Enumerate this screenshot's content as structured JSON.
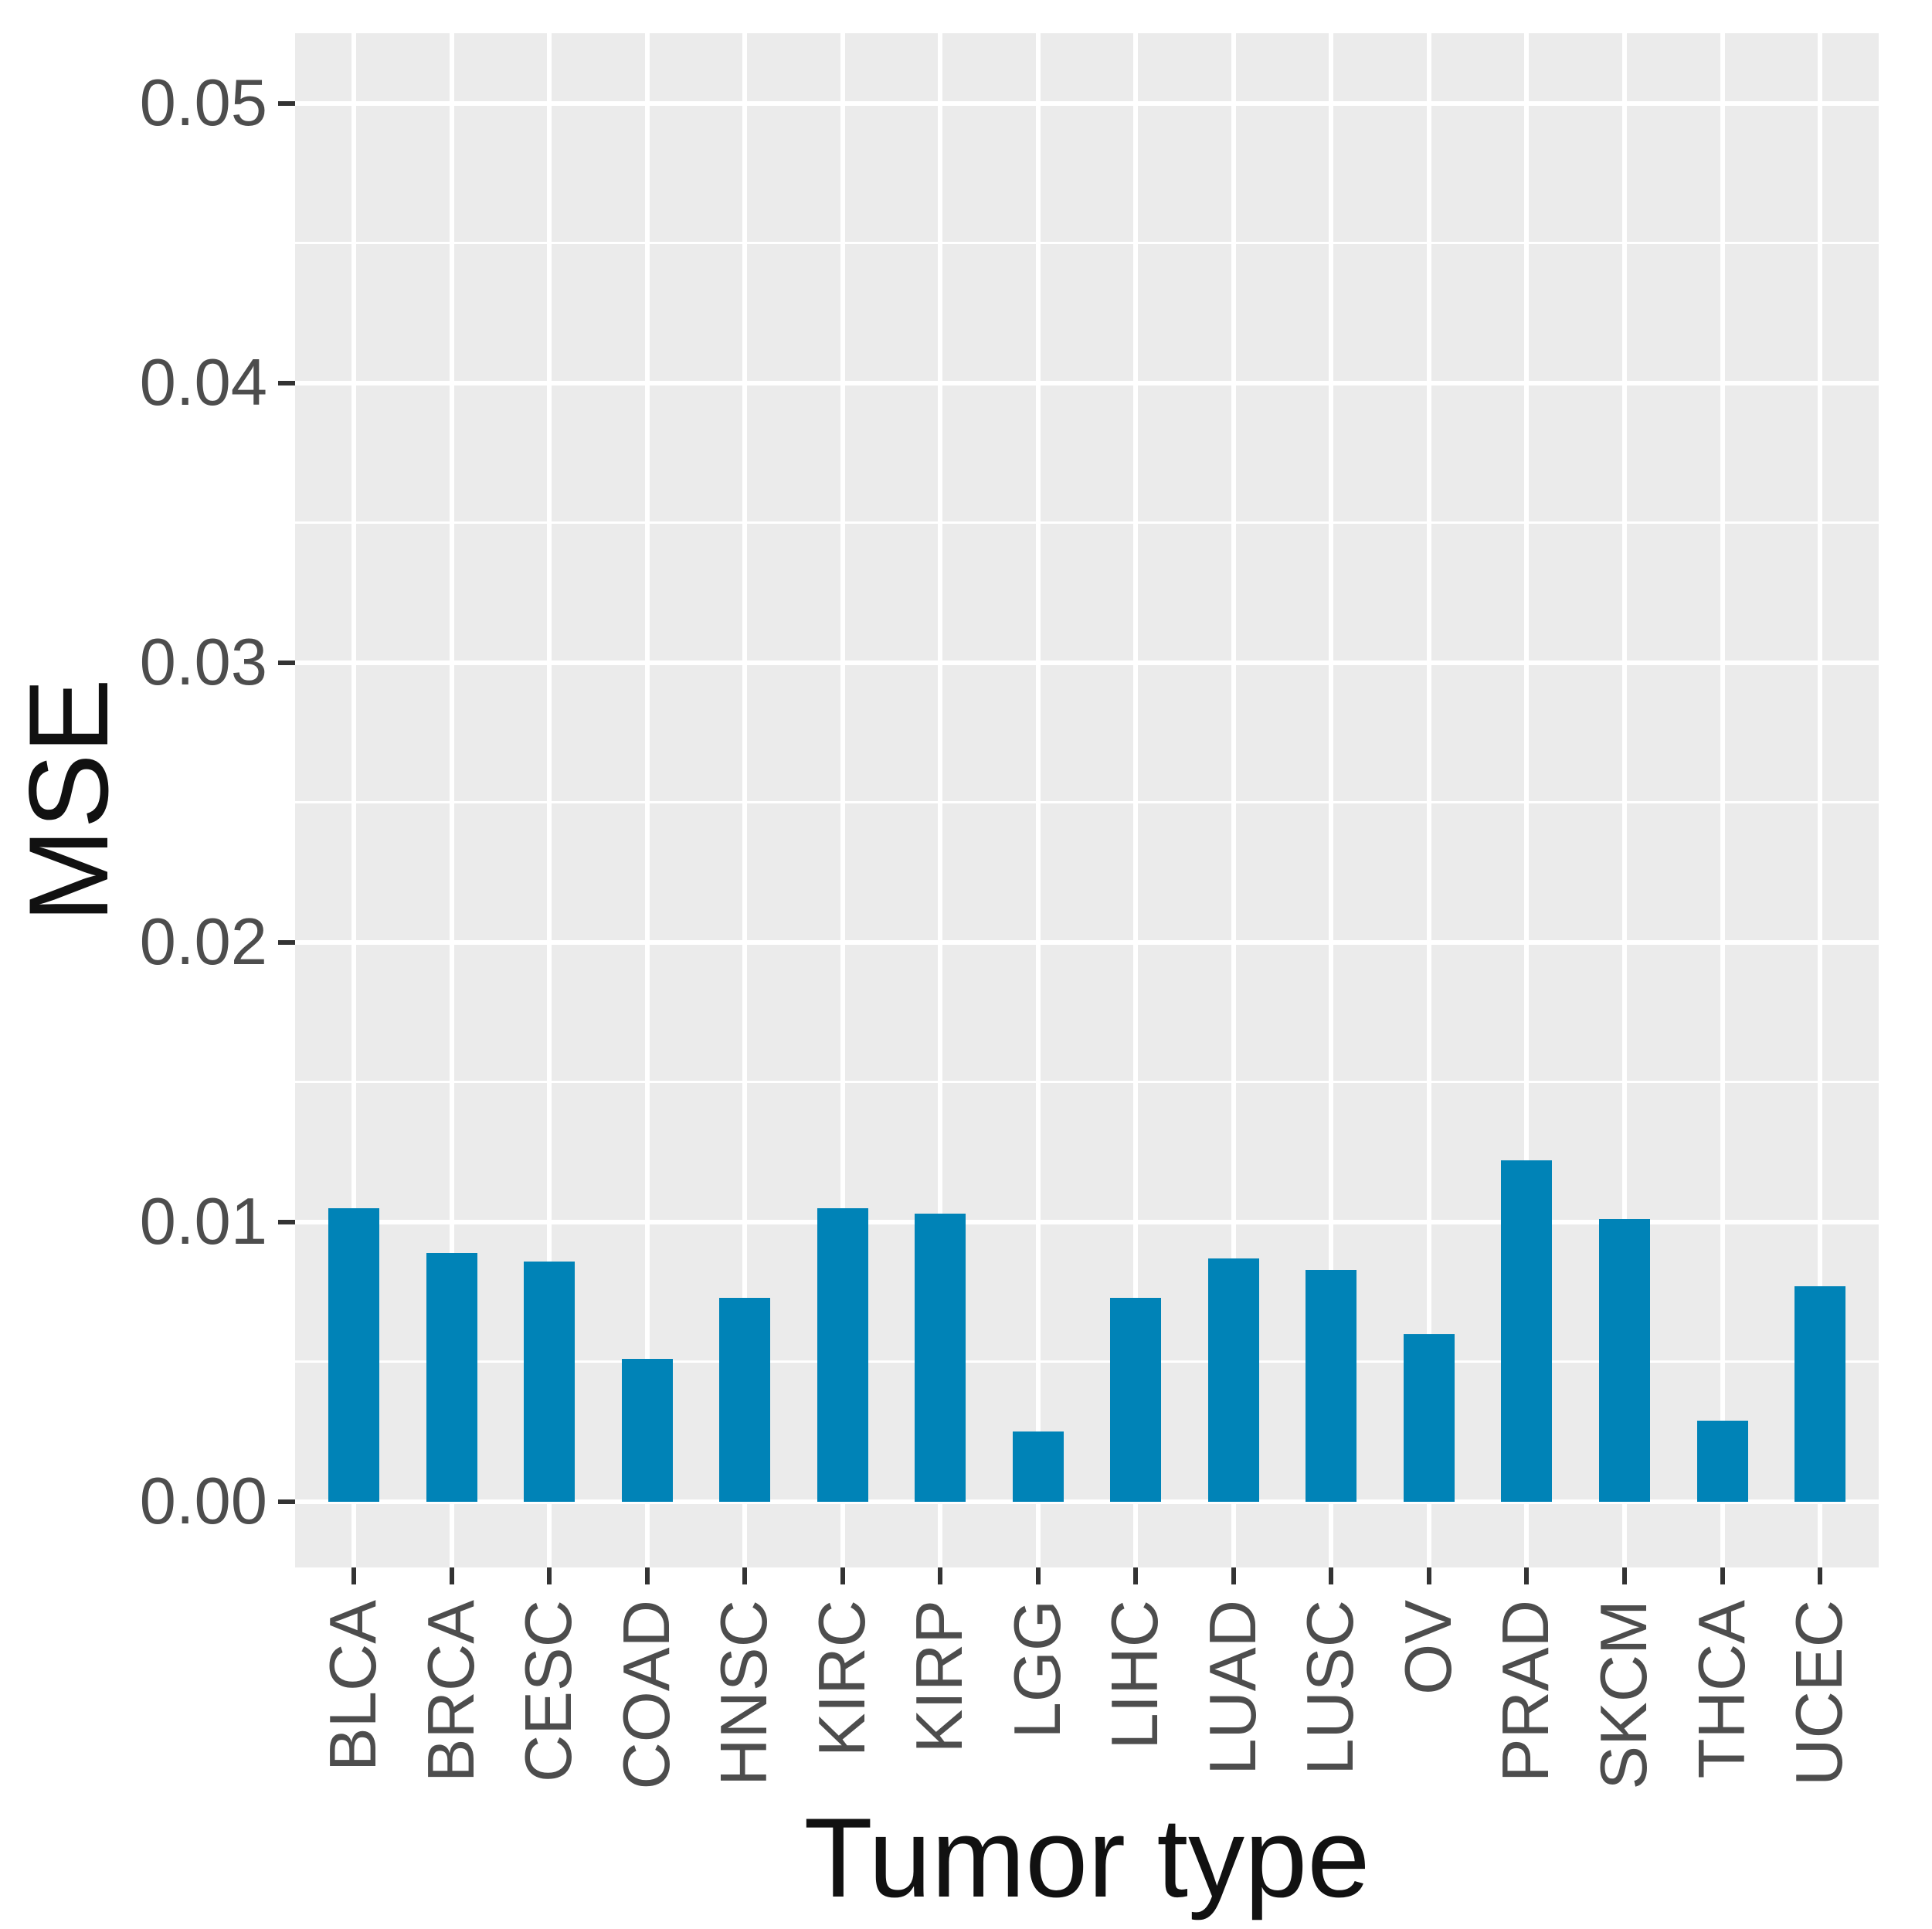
{
  "chart_data": {
    "type": "bar",
    "title": "",
    "xlabel": "Tumor type",
    "ylabel": "MSE",
    "categories": [
      "BLCA",
      "BRCA",
      "CESC",
      "COAD",
      "HNSC",
      "KIRC",
      "KIRP",
      "LGG",
      "LIHC",
      "LUAD",
      "LUSC",
      "OV",
      "PRAD",
      "SKCM",
      "THCA",
      "UCEC"
    ],
    "values": [
      0.0105,
      0.0089,
      0.0086,
      0.0051,
      0.0073,
      0.0105,
      0.0103,
      0.0025,
      0.0073,
      0.0087,
      0.0083,
      0.006,
      0.0122,
      0.0101,
      0.0029,
      0.0077
    ],
    "ylim": [
      -0.00235,
      0.05251
    ],
    "yticks": [
      0,
      0.01,
      0.02,
      0.03,
      0.04,
      0.05
    ],
    "ytick_labels": [
      "0.00",
      "0.01",
      "0.02",
      "0.03",
      "0.04",
      "0.05"
    ],
    "minor_yticks": [
      0.005,
      0.015,
      0.025,
      0.035,
      0.045
    ],
    "legend_position": "none",
    "grid": "white major horizontal + minor horizontal; white vertical major lines at category centers; grey panel background",
    "colors": {
      "bar": "#0083B7",
      "panel_bg": "#EBEBEB",
      "gridline": "#FFFFFF",
      "tick_mark": "#333333",
      "tick_label": "#4D4D4D",
      "axis_title": "#111111",
      "background": "#FFFFFF"
    }
  }
}
